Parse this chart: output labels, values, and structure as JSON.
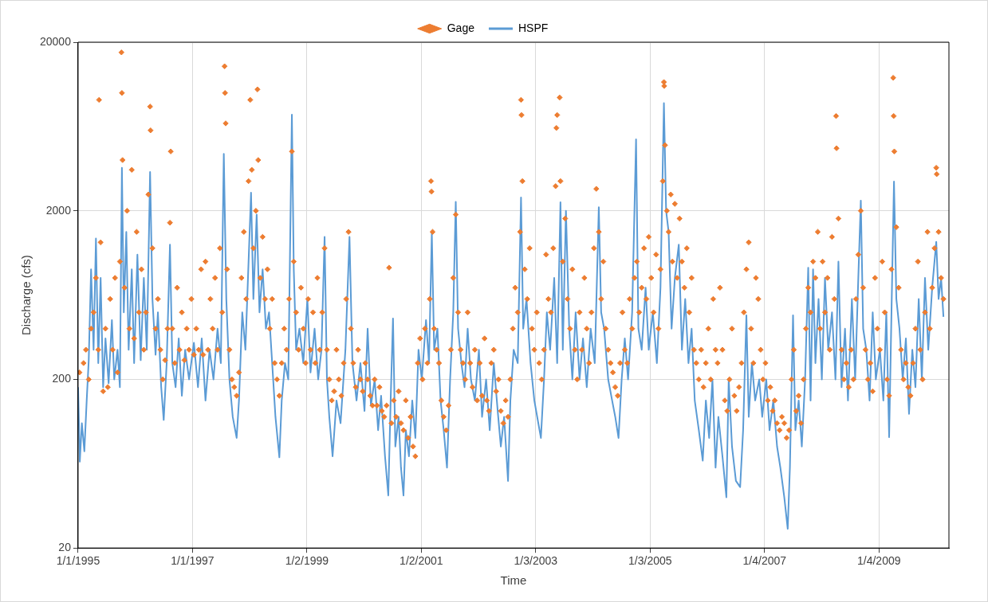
{
  "chart_data": {
    "type": "scatter",
    "xlabel": "Time",
    "ylabel": "Discharge (cfs)",
    "legend": "top",
    "grid": true,
    "log": "y",
    "xlim": [
      "1995-01-01",
      "2010-03-27"
    ],
    "ylim": [
      20,
      20000
    ],
    "yticks": [
      20,
      200,
      2000,
      20000
    ],
    "xticks": [
      {
        "value": "1995-01-01",
        "label": "1/1/1995"
      },
      {
        "value": "1997-01-01",
        "label": "1/1/1997"
      },
      {
        "value": "1999-01-02",
        "label": "1/2/1999"
      },
      {
        "value": "2001-01-02",
        "label": "1/2/2001"
      },
      {
        "value": "2003-01-03",
        "label": "1/3/2003"
      },
      {
        "value": "2005-01-03",
        "label": "1/3/2005"
      },
      {
        "value": "2007-01-04",
        "label": "1/4/2007"
      },
      {
        "value": "2009-01-04",
        "label": "1/4/2009"
      }
    ],
    "series": [
      {
        "name": "Gage",
        "type": "scatter",
        "marker": "diamond",
        "color": "#ed7d31",
        "x": [
          "1995-01-10",
          "1995-02-05",
          "1995-02-20",
          "1995-03-10",
          "1995-03-25",
          "1995-04-10",
          "1995-04-25",
          "1995-05-10",
          "1995-05-15",
          "1995-05-25",
          "1995-06-10",
          "1995-06-25",
          "1995-07-10",
          "1995-07-25",
          "1995-08-10",
          "1995-08-25",
          "1995-09-10",
          "1995-09-25",
          "1995-10-05",
          "1995-10-08",
          "1995-10-12",
          "1995-10-25",
          "1995-11-10",
          "1995-11-25",
          "1995-12-10",
          "1995-12-25",
          "1996-01-10",
          "1996-01-25",
          "1996-02-10",
          "1996-02-25",
          "1996-03-10",
          "1996-03-25",
          "1996-04-05",
          "1996-04-08",
          "1996-04-20",
          "1996-05-10",
          "1996-05-25",
          "1996-06-10",
          "1996-06-25",
          "1996-07-10",
          "1996-07-25",
          "1996-08-10",
          "1996-08-15",
          "1996-08-25",
          "1996-09-10",
          "1996-09-25",
          "1996-10-10",
          "1996-10-25",
          "1996-11-10",
          "1996-11-25",
          "1996-12-10",
          "1996-12-25",
          "1997-01-10",
          "1997-01-25",
          "1997-02-10",
          "1997-02-25",
          "1997-03-10",
          "1997-03-25",
          "1997-04-10",
          "1997-04-25",
          "1997-05-10",
          "1997-05-25",
          "1997-06-10",
          "1997-06-25",
          "1997-07-10",
          "1997-07-25",
          "1997-07-28",
          "1997-08-01",
          "1997-08-10",
          "1997-08-25",
          "1997-09-10",
          "1997-09-25",
          "1997-10-10",
          "1997-10-25",
          "1997-11-10",
          "1997-11-25",
          "1997-12-10",
          "1997-12-25",
          "1998-01-05",
          "1998-01-15",
          "1998-01-25",
          "1998-02-10",
          "1998-02-20",
          "1998-02-25",
          "1998-03-10",
          "1998-03-25",
          "1998-04-10",
          "1998-04-25",
          "1998-05-10",
          "1998-05-25",
          "1998-06-10",
          "1998-06-25",
          "1998-07-10",
          "1998-07-25",
          "1998-08-10",
          "1998-08-25",
          "1998-09-10",
          "1998-09-28",
          "1998-10-10",
          "1998-10-25",
          "1998-11-10",
          "1998-11-25",
          "1998-12-10",
          "1998-12-25",
          "1999-01-10",
          "1999-01-25",
          "1999-02-10",
          "1999-02-25",
          "1999-03-10",
          "1999-03-25",
          "1999-04-10",
          "1999-04-25",
          "1999-05-10",
          "1999-05-25",
          "1999-06-10",
          "1999-06-25",
          "1999-07-10",
          "1999-07-25",
          "1999-08-10",
          "1999-08-25",
          "1999-09-10",
          "1999-09-25",
          "1999-10-10",
          "1999-10-25",
          "1999-11-10",
          "1999-11-25",
          "1999-12-10",
          "1999-12-25",
          "2000-01-10",
          "2000-01-25",
          "2000-02-10",
          "2000-02-25",
          "2000-03-10",
          "2000-03-25",
          "2000-04-10",
          "2000-04-25",
          "2000-05-10",
          "2000-05-25",
          "2000-06-10",
          "2000-06-25",
          "2000-07-10",
          "2000-07-25",
          "2000-08-10",
          "2000-08-25",
          "2000-09-10",
          "2000-09-25",
          "2000-10-10",
          "2000-10-25",
          "2000-11-10",
          "2000-11-25",
          "2000-12-10",
          "2000-12-25",
          "2001-01-10",
          "2001-01-25",
          "2001-02-10",
          "2001-02-25",
          "2001-03-05",
          "2001-03-08",
          "2001-03-15",
          "2001-03-25",
          "2001-04-10",
          "2001-04-25",
          "2001-05-10",
          "2001-05-25",
          "2001-06-10",
          "2001-06-25",
          "2001-07-10",
          "2001-07-25",
          "2001-08-10",
          "2001-08-25",
          "2001-09-10",
          "2001-09-25",
          "2001-10-10",
          "2001-10-25",
          "2001-11-10",
          "2001-11-25",
          "2001-12-10",
          "2001-12-25",
          "2002-01-10",
          "2002-01-25",
          "2002-02-10",
          "2002-02-25",
          "2002-03-10",
          "2002-03-25",
          "2002-04-10",
          "2002-04-25",
          "2002-05-10",
          "2002-05-25",
          "2002-06-10",
          "2002-06-25",
          "2002-07-10",
          "2002-07-25",
          "2002-08-10",
          "2002-08-25",
          "2002-09-10",
          "2002-09-25",
          "2002-10-01",
          "2002-10-04",
          "2002-10-10",
          "2002-10-25",
          "2002-11-10",
          "2002-11-25",
          "2002-12-10",
          "2002-12-25",
          "2003-01-10",
          "2003-01-25",
          "2003-02-10",
          "2003-02-25",
          "2003-03-10",
          "2003-03-25",
          "2003-04-10",
          "2003-04-25",
          "2003-05-10",
          "2003-05-15",
          "2003-05-20",
          "2003-06-05",
          "2003-06-10",
          "2003-06-25",
          "2003-07-10",
          "2003-07-25",
          "2003-08-10",
          "2003-08-25",
          "2003-09-10",
          "2003-09-25",
          "2003-10-10",
          "2003-10-25",
          "2003-11-10",
          "2003-11-25",
          "2003-12-10",
          "2003-12-25",
          "2004-01-10",
          "2004-01-25",
          "2004-02-10",
          "2004-02-25",
          "2004-03-10",
          "2004-03-25",
          "2004-04-10",
          "2004-04-25",
          "2004-05-10",
          "2004-05-25",
          "2004-06-10",
          "2004-06-25",
          "2004-07-10",
          "2004-07-25",
          "2004-08-10",
          "2004-08-25",
          "2004-09-10",
          "2004-09-25",
          "2004-10-10",
          "2004-10-25",
          "2004-11-10",
          "2004-11-25",
          "2004-12-10",
          "2004-12-25",
          "2005-01-10",
          "2005-01-25",
          "2005-02-10",
          "2005-02-25",
          "2005-03-10",
          "2005-03-25",
          "2005-04-01",
          "2005-04-03",
          "2005-04-08",
          "2005-04-20",
          "2005-05-01",
          "2005-05-15",
          "2005-05-25",
          "2005-06-10",
          "2005-06-25",
          "2005-07-10",
          "2005-07-25",
          "2005-08-10",
          "2005-08-25",
          "2005-09-10",
          "2005-09-25",
          "2005-10-10",
          "2005-10-25",
          "2005-11-10",
          "2005-11-25",
          "2005-12-10",
          "2005-12-25",
          "2006-01-10",
          "2006-01-25",
          "2006-02-10",
          "2006-02-25",
          "2006-03-10",
          "2006-03-25",
          "2006-04-10",
          "2006-04-25",
          "2006-05-10",
          "2006-05-25",
          "2006-06-10",
          "2006-06-25",
          "2006-07-10",
          "2006-07-25",
          "2006-08-10",
          "2006-08-25",
          "2006-09-10",
          "2006-09-25",
          "2006-10-10",
          "2006-10-25",
          "2006-11-10",
          "2006-11-25",
          "2006-12-10",
          "2006-12-25",
          "2007-01-10",
          "2007-01-25",
          "2007-02-10",
          "2007-02-25",
          "2007-03-10",
          "2007-03-25",
          "2007-04-10",
          "2007-04-25",
          "2007-05-10",
          "2007-05-25",
          "2007-06-10",
          "2007-06-25",
          "2007-07-10",
          "2007-07-25",
          "2007-08-10",
          "2007-08-25",
          "2007-09-10",
          "2007-09-25",
          "2007-10-10",
          "2007-10-25",
          "2007-11-10",
          "2007-11-25",
          "2007-12-10",
          "2007-12-25",
          "2008-01-10",
          "2008-01-25",
          "2008-02-10",
          "2008-02-25",
          "2008-03-10",
          "2008-03-25",
          "2008-04-05",
          "2008-04-08",
          "2008-04-20",
          "2008-05-10",
          "2008-05-25",
          "2008-06-10",
          "2008-06-25",
          "2008-07-10",
          "2008-07-25",
          "2008-08-10",
          "2008-08-25",
          "2008-09-10",
          "2008-09-25",
          "2008-10-10",
          "2008-10-25",
          "2008-11-10",
          "2008-11-25",
          "2008-12-10",
          "2008-12-25",
          "2009-01-10",
          "2009-01-25",
          "2009-02-10",
          "2009-02-25",
          "2009-03-10",
          "2009-03-25",
          "2009-04-05",
          "2009-04-08",
          "2009-04-12",
          "2009-04-25",
          "2009-05-10",
          "2009-05-25",
          "2009-06-10",
          "2009-06-25",
          "2009-07-10",
          "2009-07-25",
          "2009-08-10",
          "2009-08-25",
          "2009-09-10",
          "2009-09-25",
          "2009-10-10",
          "2009-10-25",
          "2009-11-10",
          "2009-11-25",
          "2009-12-10",
          "2009-12-25",
          "2010-01-05",
          "2010-01-08",
          "2010-01-20",
          "2010-02-05",
          "2010-02-20"
        ],
        "values": [
          220,
          250,
          300,
          200,
          400,
          500,
          800,
          300,
          9100,
          1300,
          170,
          400,
          180,
          600,
          300,
          800,
          220,
          1000,
          17400,
          10000,
          4000,
          700,
          2000,
          400,
          3500,
          350,
          1500,
          500,
          900,
          300,
          500,
          2500,
          8300,
          6000,
          1200,
          400,
          600,
          300,
          200,
          260,
          400,
          1700,
          4500,
          400,
          250,
          700,
          300,
          500,
          260,
          400,
          300,
          600,
          280,
          400,
          300,
          900,
          280,
          1000,
          300,
          600,
          400,
          800,
          300,
          1200,
          500,
          14400,
          10000,
          6600,
          900,
          300,
          200,
          180,
          160,
          220,
          800,
          1500,
          600,
          3000,
          9100,
          3500,
          1200,
          2000,
          10500,
          4000,
          800,
          1400,
          600,
          900,
          400,
          600,
          250,
          200,
          160,
          250,
          400,
          300,
          600,
          4500,
          1000,
          500,
          300,
          700,
          400,
          250,
          600,
          300,
          500,
          250,
          800,
          300,
          500,
          1200,
          300,
          200,
          150,
          170,
          300,
          200,
          160,
          250,
          600,
          1500,
          400,
          250,
          180,
          300,
          200,
          170,
          250,
          200,
          160,
          140,
          200,
          140,
          180,
          130,
          120,
          140,
          920,
          110,
          150,
          120,
          170,
          110,
          100,
          150,
          90,
          120,
          80,
          70,
          250,
          350,
          200,
          400,
          250,
          600,
          3000,
          2600,
          1500,
          400,
          300,
          250,
          150,
          120,
          100,
          140,
          300,
          800,
          1900,
          500,
          300,
          250,
          200,
          500,
          250,
          180,
          300,
          150,
          250,
          160,
          350,
          150,
          130,
          250,
          300,
          170,
          200,
          130,
          110,
          150,
          120,
          200,
          400,
          700,
          500,
          1500,
          9100,
          7400,
          3000,
          900,
          600,
          1200,
          400,
          300,
          500,
          250,
          200,
          300,
          1100,
          600,
          500,
          1200,
          2800,
          6200,
          7400,
          9400,
          3000,
          1000,
          1800,
          600,
          400,
          900,
          300,
          200,
          500,
          300,
          800,
          400,
          250,
          500,
          1200,
          2700,
          1500,
          600,
          1000,
          400,
          300,
          250,
          220,
          180,
          160,
          250,
          500,
          300,
          250,
          600,
          400,
          800,
          1000,
          500,
          700,
          1200,
          600,
          1400,
          800,
          500,
          1100,
          400,
          900,
          3000,
          11600,
          11000,
          4900,
          2000,
          1500,
          2500,
          1000,
          2200,
          800,
          1800,
          1000,
          700,
          1200,
          500,
          800,
          300,
          250,
          200,
          300,
          180,
          250,
          400,
          200,
          600,
          300,
          250,
          700,
          300,
          150,
          130,
          200,
          400,
          160,
          130,
          180,
          250,
          500,
          900,
          1300,
          400,
          250,
          800,
          600,
          300,
          200,
          250,
          150,
          180,
          130,
          150,
          110,
          100,
          120,
          110,
          90,
          100,
          200,
          300,
          130,
          160,
          110,
          200,
          400,
          700,
          500,
          1000,
          800,
          1500,
          400,
          1000,
          500,
          800,
          300,
          1400,
          600,
          7300,
          4700,
          1800,
          300,
          200,
          250,
          180,
          300,
          200,
          600,
          1100,
          2000,
          700,
          300,
          200,
          250,
          170,
          800,
          400,
          300,
          1000,
          500,
          200,
          160,
          900,
          12300,
          7300,
          4500,
          1600,
          700,
          300,
          200,
          250,
          180,
          160,
          250,
          400,
          1000,
          300,
          200,
          500,
          1500,
          400,
          700,
          1200,
          3600,
          3300,
          1500,
          800,
          600
        ]
      },
      {
        "name": "HSPF",
        "type": "line",
        "marker": "none",
        "line_style": "solid",
        "color": "#5b9bd5",
        "x": [
          "1995-01-01",
          "1995-01-12",
          "1995-01-25",
          "1995-02-10",
          "1995-02-25",
          "1995-03-10",
          "1995-03-25",
          "1995-04-10",
          "1995-04-25",
          "1995-05-10",
          "1995-05-25",
          "1995-06-10",
          "1995-06-25",
          "1995-07-15",
          "1995-08-05",
          "1995-08-20",
          "1995-09-10",
          "1995-09-25",
          "1995-10-08",
          "1995-10-20",
          "1995-11-05",
          "1995-11-20",
          "1995-12-10",
          "1995-12-25",
          "1996-01-15",
          "1996-02-05",
          "1996-02-25",
          "1996-03-15",
          "1996-04-05",
          "1996-04-20",
          "1996-05-10",
          "1996-05-25",
          "1996-06-15",
          "1996-07-01",
          "1996-07-20",
          "1996-08-10",
          "1996-08-25",
          "1996-09-15",
          "1996-10-05",
          "1996-10-25",
          "1996-11-15",
          "1996-12-10",
          "1997-01-10",
          "1997-02-05",
          "1997-03-01",
          "1997-03-25",
          "1997-04-20",
          "1997-05-15",
          "1997-06-10",
          "1997-07-01",
          "1997-07-20",
          "1997-08-05",
          "1997-08-25",
          "1997-09-15",
          "1997-10-10",
          "1997-10-25",
          "1997-11-15",
          "1997-12-05",
          "1998-01-10",
          "1998-01-25",
          "1998-02-15",
          "1998-03-05",
          "1998-03-25",
          "1998-04-15",
          "1998-05-05",
          "1998-05-25",
          "1998-06-15",
          "1998-07-10",
          "1998-07-25",
          "1998-08-15",
          "1998-09-05",
          "1998-09-28",
          "1998-10-10",
          "1998-10-25",
          "1998-11-15",
          "1998-12-10",
          "1999-01-05",
          "1999-01-25",
          "1999-02-20",
          "1999-03-15",
          "1999-04-05",
          "1999-04-25",
          "1999-05-10",
          "1999-05-25",
          "1999-06-15",
          "1999-07-10",
          "1999-08-05",
          "1999-09-05",
          "1999-10-01",
          "1999-10-20",
          "1999-11-15",
          "1999-12-10",
          "2000-01-05",
          "2000-01-25",
          "2000-02-15",
          "2000-03-10",
          "2000-04-01",
          "2000-04-20",
          "2000-05-15",
          "2000-06-05",
          "2000-06-20",
          "2000-07-05",
          "2000-07-20",
          "2000-08-10",
          "2000-08-25",
          "2000-09-10",
          "2000-09-25",
          "2000-10-15",
          "2000-11-05",
          "2000-11-25",
          "2000-12-15",
          "2001-01-05",
          "2001-02-01",
          "2001-02-20",
          "2001-03-10",
          "2001-03-25",
          "2001-04-15",
          "2001-05-05",
          "2001-05-25",
          "2001-06-15",
          "2001-07-05",
          "2001-07-25",
          "2001-08-10",
          "2001-08-25",
          "2001-09-15",
          "2001-10-05",
          "2001-10-25",
          "2001-11-15",
          "2001-12-10",
          "2002-01-05",
          "2002-01-25",
          "2002-02-20",
          "2002-03-15",
          "2002-04-10",
          "2002-05-05",
          "2002-05-25",
          "2002-06-15",
          "2002-07-10",
          "2002-07-25",
          "2002-08-15",
          "2002-09-10",
          "2002-10-01",
          "2002-10-15",
          "2002-11-05",
          "2002-12-01",
          "2002-12-25",
          "2003-02-05",
          "2003-02-25",
          "2003-03-15",
          "2003-04-05",
          "2003-05-01",
          "2003-05-20",
          "2003-06-10",
          "2003-06-25",
          "2003-07-15",
          "2003-08-05",
          "2003-08-25",
          "2003-09-15",
          "2003-10-10",
          "2003-11-01",
          "2003-11-25",
          "2003-12-20",
          "2004-01-15",
          "2004-02-10",
          "2004-02-25",
          "2004-03-15",
          "2004-04-10",
          "2004-05-05",
          "2004-05-25",
          "2004-06-15",
          "2004-07-05",
          "2004-07-25",
          "2004-08-15",
          "2004-09-10",
          "2004-10-05",
          "2004-10-20",
          "2004-11-10",
          "2004-12-05",
          "2004-12-25",
          "2005-01-20",
          "2005-02-15",
          "2005-03-10",
          "2005-04-01",
          "2005-04-15",
          "2005-05-01",
          "2005-05-20",
          "2005-06-10",
          "2005-07-05",
          "2005-07-25",
          "2005-08-15",
          "2005-09-05",
          "2005-09-25",
          "2005-10-15",
          "2005-11-10",
          "2005-12-05",
          "2005-12-25",
          "2006-01-15",
          "2006-02-05",
          "2006-02-25",
          "2006-03-15",
          "2006-04-10",
          "2006-05-05",
          "2006-05-20",
          "2006-06-10",
          "2006-07-05",
          "2006-08-01",
          "2006-08-20",
          "2006-09-10",
          "2006-09-25",
          "2006-10-15",
          "2006-11-05",
          "2006-12-01",
          "2006-12-20",
          "2007-01-15",
          "2007-02-05",
          "2007-03-01",
          "2007-03-25",
          "2007-04-15",
          "2007-05-10",
          "2007-06-01",
          "2007-06-15",
          "2007-07-05",
          "2007-07-20",
          "2007-08-10",
          "2007-08-30",
          "2007-09-20",
          "2007-10-10",
          "2007-10-25",
          "2007-11-10",
          "2007-11-25",
          "2007-12-15",
          "2008-01-05",
          "2008-01-25",
          "2008-02-15",
          "2008-03-10",
          "2008-04-01",
          "2008-04-20",
          "2008-05-10",
          "2008-06-01",
          "2008-06-20",
          "2008-07-15",
          "2008-08-05",
          "2008-08-25",
          "2008-09-10",
          "2008-09-25",
          "2008-10-15",
          "2008-11-05",
          "2008-11-25",
          "2008-12-15",
          "2009-01-10",
          "2009-02-01",
          "2009-02-20",
          "2009-03-10",
          "2009-03-25",
          "2009-04-10",
          "2009-04-25",
          "2009-05-15",
          "2009-06-05",
          "2009-06-25",
          "2009-07-15",
          "2009-08-05",
          "2009-08-25",
          "2009-09-15",
          "2009-10-05",
          "2009-10-25",
          "2009-11-15",
          "2009-12-10",
          "2010-01-05",
          "2010-01-20",
          "2010-02-05",
          "2010-02-20"
        ],
        "values": [
          180,
          65,
          110,
          75,
          150,
          260,
          900,
          300,
          1370,
          250,
          800,
          180,
          350,
          190,
          450,
          200,
          300,
          180,
          3600,
          500,
          1500,
          300,
          900,
          250,
          1100,
          260,
          800,
          300,
          3400,
          600,
          280,
          500,
          180,
          115,
          250,
          1260,
          250,
          180,
          350,
          160,
          300,
          200,
          330,
          180,
          350,
          150,
          300,
          200,
          400,
          250,
          4350,
          600,
          200,
          120,
          90,
          150,
          500,
          300,
          2560,
          600,
          1900,
          500,
          900,
          400,
          500,
          250,
          120,
          69,
          150,
          250,
          200,
          7440,
          900,
          300,
          400,
          250,
          600,
          220,
          400,
          200,
          300,
          1400,
          200,
          120,
          70,
          150,
          110,
          300,
          1400,
          250,
          150,
          250,
          130,
          400,
          140,
          200,
          100,
          160,
          70,
          41,
          150,
          460,
          80,
          120,
          60,
          41,
          100,
          70,
          150,
          90,
          300,
          200,
          450,
          250,
          1470,
          300,
          400,
          150,
          100,
          60,
          200,
          500,
          2260,
          400,
          250,
          180,
          400,
          200,
          150,
          300,
          120,
          200,
          100,
          250,
          130,
          80,
          120,
          50,
          150,
          300,
          250,
          2400,
          400,
          600,
          250,
          150,
          90,
          200,
          500,
          300,
          800,
          250,
          2250,
          300,
          2000,
          400,
          200,
          500,
          200,
          350,
          180,
          400,
          250,
          2100,
          500,
          400,
          200,
          150,
          120,
          90,
          200,
          350,
          200,
          500,
          5300,
          400,
          300,
          700,
          300,
          500,
          250,
          700,
          8700,
          2000,
          1500,
          400,
          800,
          1260,
          300,
          600,
          250,
          400,
          150,
          100,
          66,
          150,
          90,
          200,
          60,
          120,
          70,
          40,
          200,
          80,
          50,
          46,
          100,
          480,
          120,
          250,
          150,
          200,
          120,
          200,
          100,
          150,
          80,
          60,
          40,
          26,
          60,
          480,
          100,
          150,
          80,
          200,
          920,
          150,
          900,
          250,
          600,
          200,
          800,
          300,
          500,
          200,
          1000,
          180,
          400,
          150,
          600,
          200,
          800,
          2300,
          400,
          300,
          150,
          500,
          200,
          300,
          150,
          500,
          91,
          500,
          2980,
          600,
          400,
          200,
          350,
          125,
          300,
          180,
          600,
          200,
          800,
          300,
          700,
          1310,
          600,
          800,
          470
        ]
      }
    ]
  }
}
